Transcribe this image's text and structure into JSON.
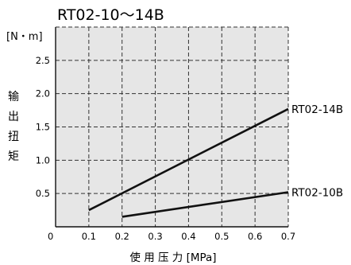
{
  "chart_data": {
    "type": "line",
    "title": "RT02-10～14B",
    "y_unit": "[N・m]",
    "ylabel": "输出扭矩",
    "ylabel_chars": [
      "输",
      "出",
      "扭",
      "矩"
    ],
    "xlabel": "使 用 压 力 [MPa]",
    "origin_label": "0",
    "xlim": [
      0,
      0.7
    ],
    "ylim": [
      0,
      3.0
    ],
    "x_ticks": [
      0.1,
      0.2,
      0.3,
      0.4,
      0.5,
      0.6,
      0.7
    ],
    "x_tick_labels": [
      "0.1",
      "0.2",
      "0.3",
      "0.4",
      "0.5",
      "0.6",
      "0.7"
    ],
    "y_ticks": [
      0.5,
      1.0,
      1.5,
      2.0,
      2.5
    ],
    "y_tick_labels": [
      "0.5",
      "1.0",
      "1.5",
      "2.0",
      "2.5"
    ],
    "grid": "dashed",
    "plot_background": "#e6e6e6",
    "series": [
      {
        "name": "RT02-14B",
        "x": [
          0.1,
          0.7
        ],
        "y": [
          0.25,
          1.77
        ]
      },
      {
        "name": "RT02-10B",
        "x": [
          0.2,
          0.7
        ],
        "y": [
          0.15,
          0.52
        ]
      }
    ]
  }
}
